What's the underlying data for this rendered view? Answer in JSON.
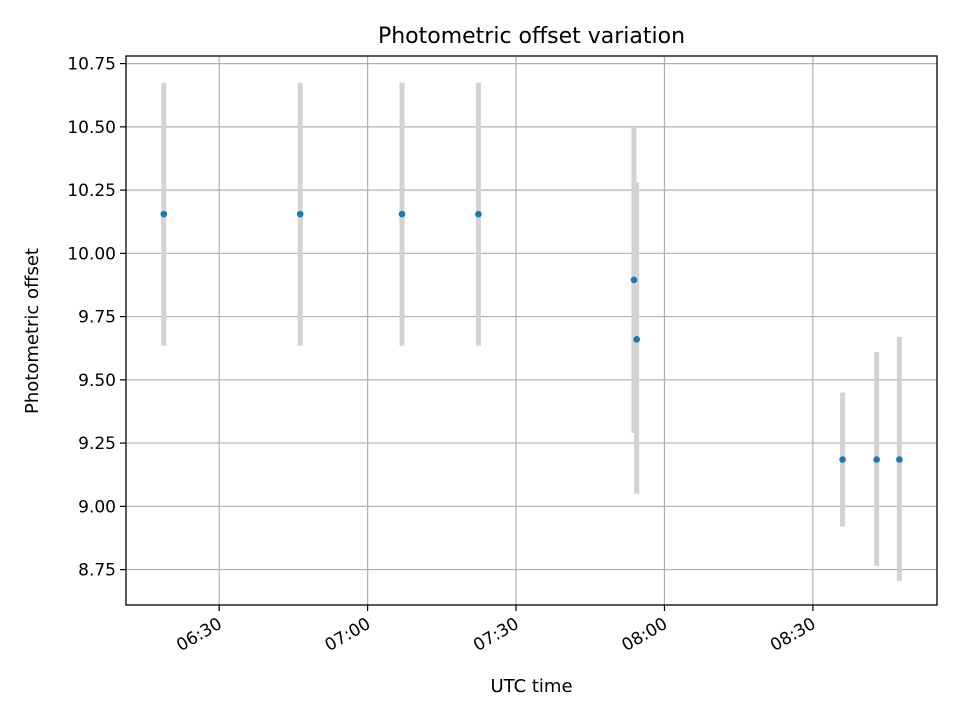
{
  "chart_data": {
    "type": "scatter",
    "title": "Photometric offset variation",
    "xlabel": "UTC time",
    "ylabel": "Photometric offset",
    "x_axis_type": "time",
    "xlim": [
      "06:11:10",
      "08:55:05"
    ],
    "ylim": [
      8.61,
      10.78
    ],
    "x_ticks": [
      "06:30",
      "07:00",
      "07:30",
      "08:00",
      "08:30"
    ],
    "y_ticks": [
      "8.75",
      "9.00",
      "9.25",
      "9.50",
      "9.75",
      "10.00",
      "10.25",
      "10.50",
      "10.75"
    ],
    "grid": true,
    "legend": "none",
    "colors": {
      "marker": "#1f77b4",
      "error_bar": "#d3d3d3",
      "grid": "#b0b0b0"
    },
    "points": [
      {
        "time": "06:18:48",
        "y": 10.155,
        "low": 9.635,
        "high": 10.675
      },
      {
        "time": "06:46:23",
        "y": 10.155,
        "low": 9.635,
        "high": 10.675
      },
      {
        "time": "07:06:57",
        "y": 10.155,
        "low": 9.635,
        "high": 10.675
      },
      {
        "time": "07:22:24",
        "y": 10.155,
        "low": 9.635,
        "high": 10.675
      },
      {
        "time": "07:53:50",
        "y": 9.895,
        "low": 9.29,
        "high": 10.5
      },
      {
        "time": "07:54:23",
        "y": 9.66,
        "low": 9.05,
        "high": 10.28
      },
      {
        "time": "08:36:00",
        "y": 9.185,
        "low": 8.92,
        "high": 9.45
      },
      {
        "time": "08:42:53",
        "y": 9.185,
        "low": 8.765,
        "high": 9.61
      },
      {
        "time": "08:47:29",
        "y": 9.185,
        "low": 8.705,
        "high": 9.67
      }
    ]
  }
}
